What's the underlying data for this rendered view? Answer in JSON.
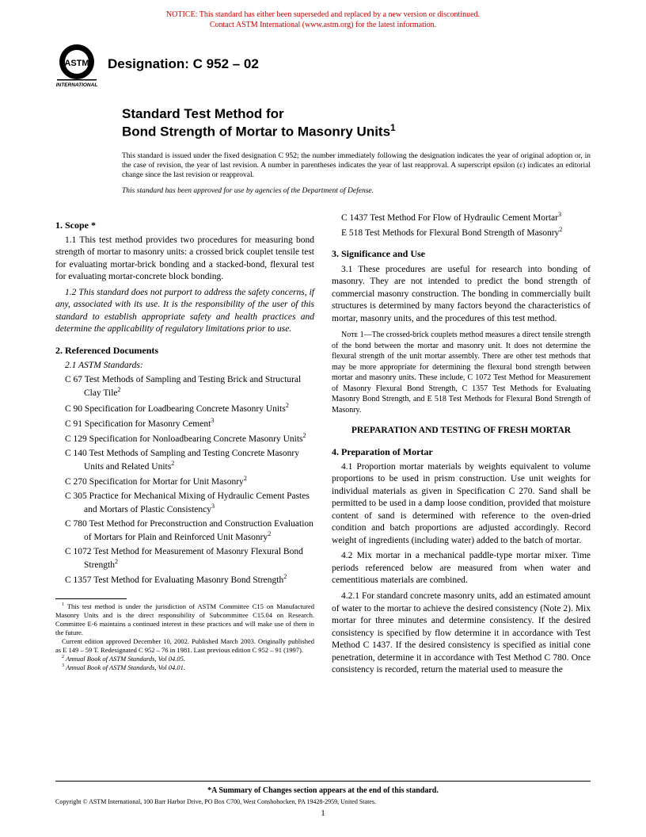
{
  "notice": {
    "line1": "NOTICE: This standard has either been superseded and replaced by a new version or discontinued.",
    "line2": "Contact ASTM International (www.astm.org) for the latest information.",
    "color": "#cc0000"
  },
  "designation": "Designation: C 952 – 02",
  "title": {
    "line1": "Standard Test Method for",
    "line2": "Bond Strength of Mortar to Masonry Units",
    "sup": "1"
  },
  "issued": "This standard is issued under the fixed designation C 952; the number immediately following the designation indicates the year of original adoption or, in the case of revision, the year of last revision. A number in parentheses indicates the year of last reapproval. A superscript epsilon (ε) indicates an editorial change since the last revision or reapproval.",
  "approved": "This standard has been approved for use by agencies of the Department of Defense.",
  "sec1": {
    "head": "1.  Scope *",
    "p11": "1.1  This test method provides two procedures for measuring bond strength of mortar to masonry units: a crossed brick couplet tensile test for evaluating mortar-brick bonding and a stacked-bond, flexural test for evaluating mortar-concrete block bonding.",
    "p12": "1.2  This standard does not purport to address the safety concerns, if any, associated with its use. It is the responsibility of the user of this standard to establish appropriate safety and health practices and determine the applicability of regulatory limitations prior to use."
  },
  "sec2": {
    "head": "2.  Referenced Documents",
    "sub": "2.1  ASTM Standards:",
    "refs": [
      {
        "t": "C 67  Test Methods of Sampling and Testing Brick and Structural Clay Tile",
        "s": "2"
      },
      {
        "t": "C 90  Specification for Loadbearing Concrete Masonry Units",
        "s": "2"
      },
      {
        "t": "C 91  Specification for Masonry Cement",
        "s": "3"
      },
      {
        "t": "C 129  Specification for Nonloadbearing Concrete Masonry Units",
        "s": "2"
      },
      {
        "t": "C 140  Test Methods of Sampling and Testing Concrete Masonry Units and Related Units",
        "s": "2"
      },
      {
        "t": "C 270  Specification for Mortar for Unit Masonry",
        "s": "2"
      },
      {
        "t": "C 305  Practice for Mechanical Mixing of Hydraulic Cement Pastes and Mortars of Plastic Consistency",
        "s": "3"
      },
      {
        "t": "C 780  Test Method for Preconstruction and Construction Evaluation of Mortars for Plain and Reinforced Unit Masonry",
        "s": "2"
      },
      {
        "t": "C 1072  Test Method for Measurement of Masonry Flexural Bond Strength",
        "s": "2"
      },
      {
        "t": "C 1357  Test Method for Evaluating Masonry Bond Strength",
        "s": "2"
      }
    ],
    "refs2": [
      {
        "t": "C 1437  Test Method For Flow of Hydraulic Cement Mortar",
        "s": "3"
      },
      {
        "t": "E 518  Test Methods for Flexural Bond Strength of Masonry",
        "s": "2"
      }
    ]
  },
  "sec3": {
    "head": "3.  Significance and Use",
    "p31": "3.1  These procedures are useful for research into bonding of masonry. They are not intended to predict the bond strength of commercial masonry construction. The bonding in commercially built structures is determined by many factors beyond the characteristics of mortar, masonry units, and the procedures of this test method.",
    "note": "Nᴏᴛᴇ 1—The crossed-brick couplets method measures a direct tensile strength of the bond between the mortar and masonry unit. It does not determine the flexural strength of the unit mortar assembly. There are other test methods that may be more appropriate for determining the flexural bond strength between mortar and masonry units. These include, C 1072 Test Method for Measurement of Masonry Flexural Bond Strength, C 1357 Test Methods for Evaluating Masonry Bond Strength, and E 518 Test Methods for Flexural Bond Strength of Masonry."
  },
  "prep_head": "PREPARATION AND TESTING OF FRESH MORTAR",
  "sec4": {
    "head": "4.  Preparation of Mortar",
    "p41": "4.1  Proportion mortar materials by weights equivalent to volume proportions to be used in prism construction. Use unit weights for individual materials as given in Specification C 270. Sand shall be permitted to be used in a damp loose condition, provided that moisture content of sand is determined with reference to the oven-dried condition and batch proportions are adjusted accordingly. Record weight of ingredients (including water) added to the batch of mortar.",
    "p42": "4.2  Mix mortar in a mechanical paddle-type mortar mixer. Time periods referenced below are measured from when water and cementitious materials are combined.",
    "p421": "4.2.1  For standard concrete masonry units, add an estimated amount of water to the mortar to achieve the desired consistency (Note 2). Mix mortar for three minutes and determine consistency. If the desired consistency is specified by flow determine it in accordance with Test Method C 1437. If the desired consistency is specified as initial cone penetration, determine it in accordance with Test Method C 780. Once consistency is recorded, return the material used to measure the"
  },
  "footnotes": {
    "f1": "This test method is under the jurisdiction of ASTM Committee C15 on Manufactured Masonry Units and is the direct responsibility of Subcommittee C15.04 on Research. Committee E-6 maintains a continued interest in these practices and will make use of them in the future.",
    "f1b": "Current edition approved December 10, 2002. Published March 2003. Originally published as E 149 – 59 T. Redesignated C 952 – 76 in 1981. Last previous edition C 952 – 91 (1997).",
    "f2": "Annual Book of ASTM Standards, Vol 04.05.",
    "f3": "Annual Book of ASTM Standards, Vol 04.01."
  },
  "summary": "*A Summary of Changes section appears at the end of this standard.",
  "copyright": "Copyright © ASTM International, 100 Barr Harbor Drive, PO Box C700, West Conshohocken, PA 19428-2959, United States.",
  "page": "1"
}
